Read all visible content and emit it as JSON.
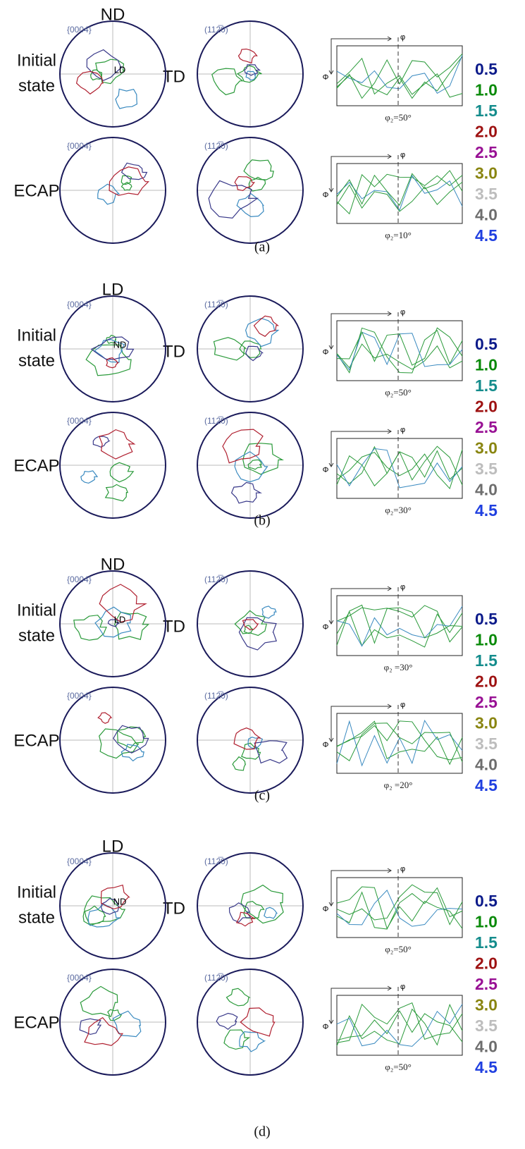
{
  "panels": [
    {
      "label": "(a)",
      "axis_top": "ND",
      "axis_right": "TD",
      "center": "LD",
      "rows": [
        {
          "name": [
            "Initial",
            "state"
          ],
          "pf1": "{0004}",
          "pf2": "(112̅0)",
          "odf": {
            "phi": "φ",
            "Phi": "Φ",
            "caption": "φ₂=50°"
          }
        },
        {
          "name": [
            "ECAP"
          ],
          "pf1": "{0004}",
          "pf2": "(112̅0)",
          "odf": {
            "phi": "φ",
            "Phi": "Φ",
            "caption": "φ₂=10°"
          }
        }
      ]
    },
    {
      "label": "(b)",
      "axis_top": "LD",
      "axis_right": "TD",
      "center": "ND",
      "rows": [
        {
          "name": [
            "Initial",
            "state"
          ],
          "pf1": "{0004}",
          "pf2": "(112̅0)",
          "odf": {
            "phi": "φ",
            "Phi": "Φ",
            "caption": "φ₂=50°"
          }
        },
        {
          "name": [
            "ECAP"
          ],
          "pf1": "{0004}",
          "pf2": "(112̅0)",
          "odf": {
            "phi": "φ",
            "Phi": "Φ",
            "caption": "φ₂=30°"
          }
        }
      ]
    },
    {
      "label": "(c)",
      "axis_top": "ND",
      "axis_right": "TD",
      "center": "LD",
      "rows": [
        {
          "name": [
            "Initial",
            "state"
          ],
          "pf1": "{0004}",
          "pf2": "(112̅0)",
          "odf": {
            "phi": "φ",
            "Phi": "Φ",
            "caption": "φ₂ =30°"
          }
        },
        {
          "name": [
            "ECAP"
          ],
          "pf1": "{0004}",
          "pf2": "(112̅0)",
          "odf": {
            "phi": "φ",
            "Phi": "Φ",
            "caption": "φ₂ =20°"
          }
        }
      ]
    },
    {
      "label": "(d)",
      "axis_top": "LD",
      "axis_right": "TD",
      "center": "ND",
      "rows": [
        {
          "name": [
            "Initial",
            "state"
          ],
          "pf1": "{0004}",
          "pf2": "(112̅0)",
          "odf": {
            "phi": "φ",
            "Phi": "Φ",
            "caption": "φ₂=50°"
          }
        },
        {
          "name": [
            "ECAP"
          ],
          "pf1": "{0004}",
          "pf2": "(112̅0)",
          "odf": {
            "phi": "φ",
            "Phi": "Φ",
            "caption": "φ₂=50°"
          }
        }
      ]
    }
  ],
  "legend": [
    {
      "text": "0.5",
      "color": "#0b1a8a"
    },
    {
      "text": "1.0",
      "color": "#0a8a0a"
    },
    {
      "text": "1.5",
      "color": "#148c8c"
    },
    {
      "text": "2.0",
      "color": "#9e1212"
    },
    {
      "text": "2.5",
      "color": "#981094"
    },
    {
      "text": "3.0",
      "color": "#8a8612"
    },
    {
      "text": "3.5",
      "color": "#bdbdbd"
    },
    {
      "text": "4.0",
      "color": "#6e6e6e"
    },
    {
      "text": "4.5",
      "color": "#1f3fe0"
    }
  ]
}
